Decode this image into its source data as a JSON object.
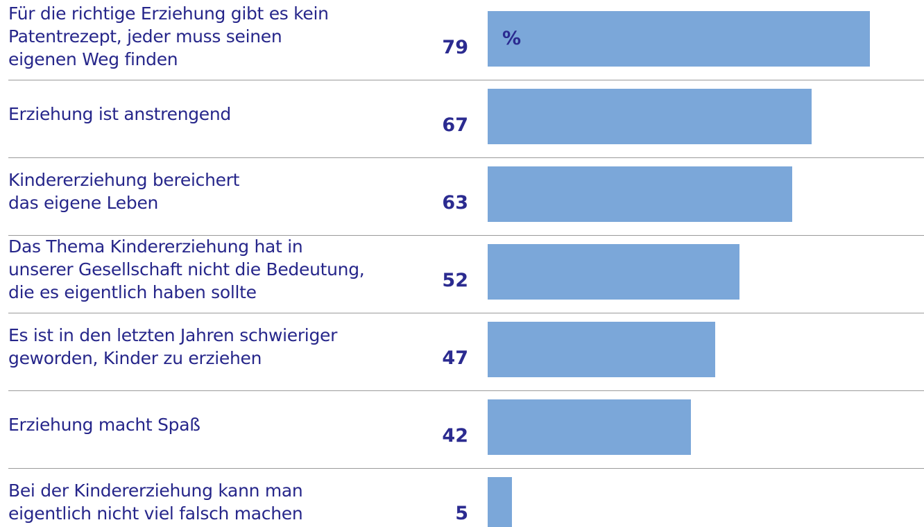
{
  "chart_data": {
    "type": "bar",
    "orientation": "horizontal",
    "categories": [
      "Für die richtige Erziehung gibt es kein\nPatentrezept, jeder muss seinen\neigenen Weg finden",
      "Erziehung ist anstrengend",
      "Kindererziehung bereichert\ndas eigene Leben",
      "Das Thema Kindererziehung hat in\nunserer Gesellschaft nicht die Bedeutung,\ndie es eigentlich haben sollte",
      "Es ist in den letzten Jahren schwieriger\ngeworden, Kinder zu erziehen",
      "Erziehung macht Spaß",
      "Bei der Kindererziehung kann man\neigentlich nicht viel falsch machen"
    ],
    "values": [
      79,
      67,
      63,
      52,
      47,
      42,
      5
    ],
    "unit": "%",
    "color": "#7ba7d9"
  }
}
